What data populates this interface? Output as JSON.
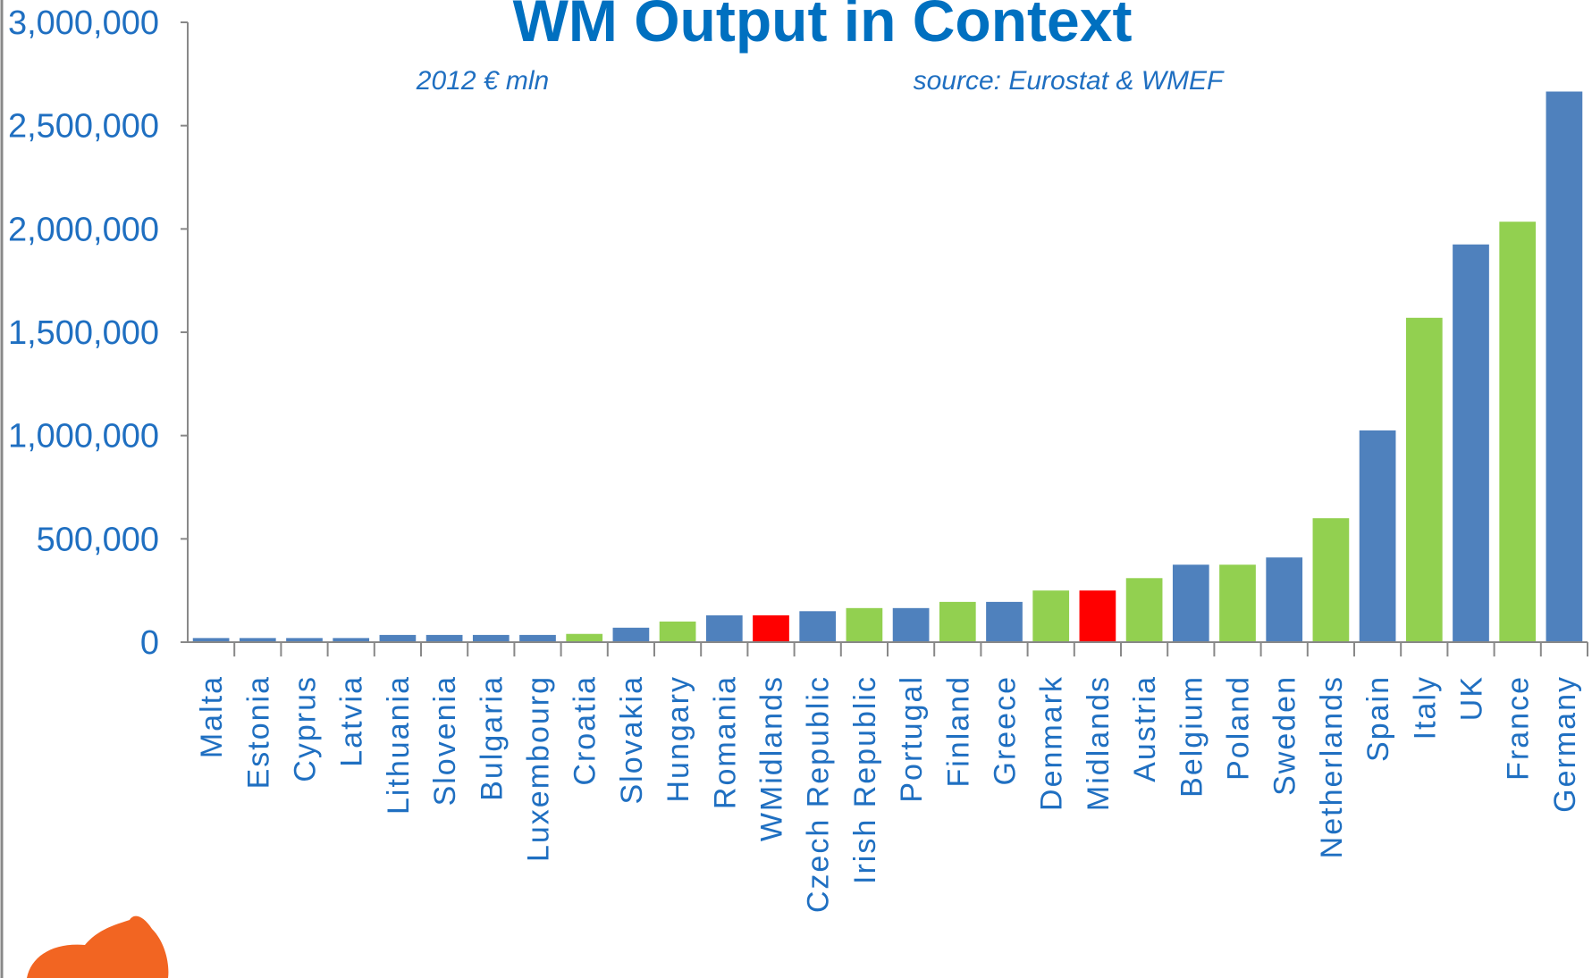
{
  "chart_data": {
    "type": "bar",
    "title": "WM Output in Context",
    "subtitle": "2012 € mln",
    "source": "source: Eurostat & WMEF",
    "categories": [
      "Malta",
      "Estonia",
      "Cyprus",
      "Latvia",
      "Lithuania",
      "Slovenia",
      "Bulgaria",
      "Luxembourg",
      "Croatia",
      "Slovakia",
      "Hungary",
      "Romania",
      "WMidlands",
      "Czech Republic",
      "Irish Republic",
      "Portugal",
      "Finland",
      "Greece",
      "Denmark",
      "Midlands",
      "Austria",
      "Belgium",
      "Poland",
      "Sweden",
      "Netherlands",
      "Spain",
      "Italy",
      "UK",
      "France",
      "Germany"
    ],
    "values": [
      20000,
      20000,
      20000,
      20000,
      35000,
      35000,
      35000,
      35000,
      40000,
      70000,
      100000,
      130000,
      130000,
      150000,
      165000,
      165000,
      195000,
      195000,
      250000,
      250000,
      310000,
      375000,
      375000,
      410000,
      600000,
      1025000,
      1570000,
      1925000,
      2035000,
      2665000
    ],
    "colors": [
      "#4f81bd",
      "#4f81bd",
      "#4f81bd",
      "#4f81bd",
      "#4f81bd",
      "#4f81bd",
      "#4f81bd",
      "#4f81bd",
      "#92d050",
      "#4f81bd",
      "#92d050",
      "#4f81bd",
      "#ff0000",
      "#4f81bd",
      "#92d050",
      "#4f81bd",
      "#92d050",
      "#4f81bd",
      "#92d050",
      "#ff0000",
      "#92d050",
      "#4f81bd",
      "#92d050",
      "#4f81bd",
      "#92d050",
      "#4f81bd",
      "#92d050",
      "#4f81bd",
      "#92d050",
      "#4f81bd"
    ],
    "ylim": [
      0,
      3000000
    ],
    "yticks": [
      {
        "value": 0,
        "label": "0"
      },
      {
        "value": 500000,
        "label": "500,000"
      },
      {
        "value": 1000000,
        "label": "1,000,000"
      },
      {
        "value": 1500000,
        "label": "1,500,000"
      },
      {
        "value": 2000000,
        "label": "2,000,000"
      },
      {
        "value": 2500000,
        "label": "2,500,000"
      },
      {
        "value": 3000000,
        "label": "3,000,000"
      }
    ]
  }
}
